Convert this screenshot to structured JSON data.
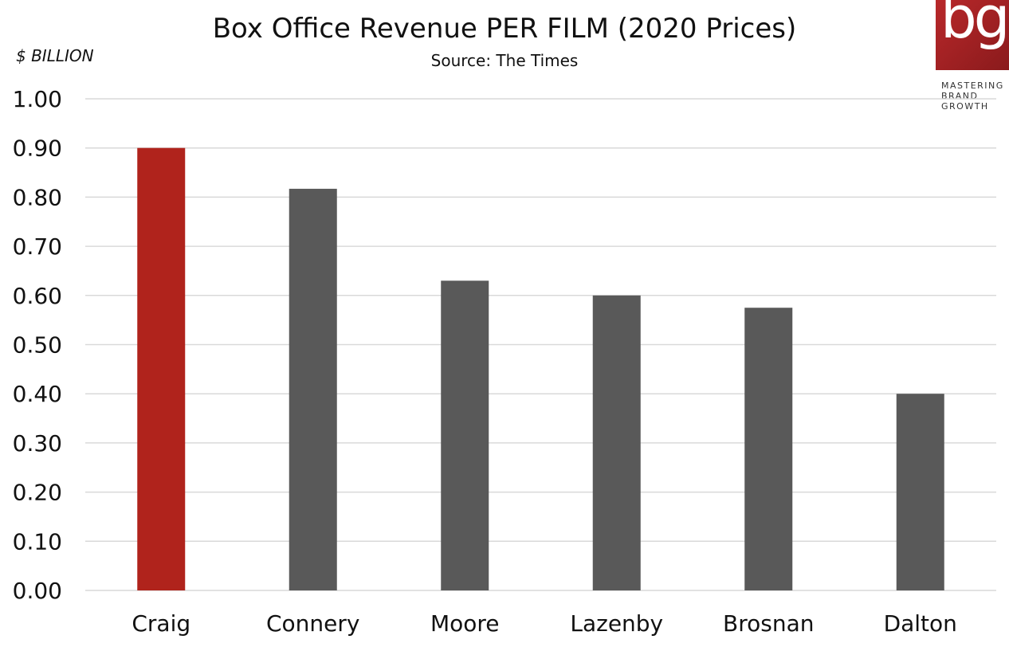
{
  "header": {
    "title": "Box Office Revenue PER FILM (2020 Prices)",
    "subtitle": "Source: The Times",
    "unit_label": "$ BILLION"
  },
  "logo": {
    "mark": "bg",
    "tagline": [
      "MASTERING",
      "BRAND",
      "GROWTH"
    ],
    "color": "#b01f22"
  },
  "colors": {
    "highlight": "#b0231c",
    "bar": "#595959",
    "grid": "#d9d9d9"
  },
  "chart_data": {
    "type": "bar",
    "title": "Box Office Revenue PER FILM (2020 Prices)",
    "subtitle": "Source: The Times",
    "ylabel": "$ BILLION",
    "xlabel": "",
    "categories": [
      "Craig",
      "Connery",
      "Moore",
      "Lazenby",
      "Brosnan",
      "Dalton"
    ],
    "values": [
      0.9,
      0.817,
      0.63,
      0.6,
      0.575,
      0.4
    ],
    "highlight_index": 0,
    "ylim": [
      0,
      1.0
    ],
    "yticks": [
      "0.00",
      "0.10",
      "0.20",
      "0.30",
      "0.40",
      "0.50",
      "0.60",
      "0.70",
      "0.80",
      "0.90",
      "1.00"
    ],
    "grid": true,
    "legend": "none"
  }
}
